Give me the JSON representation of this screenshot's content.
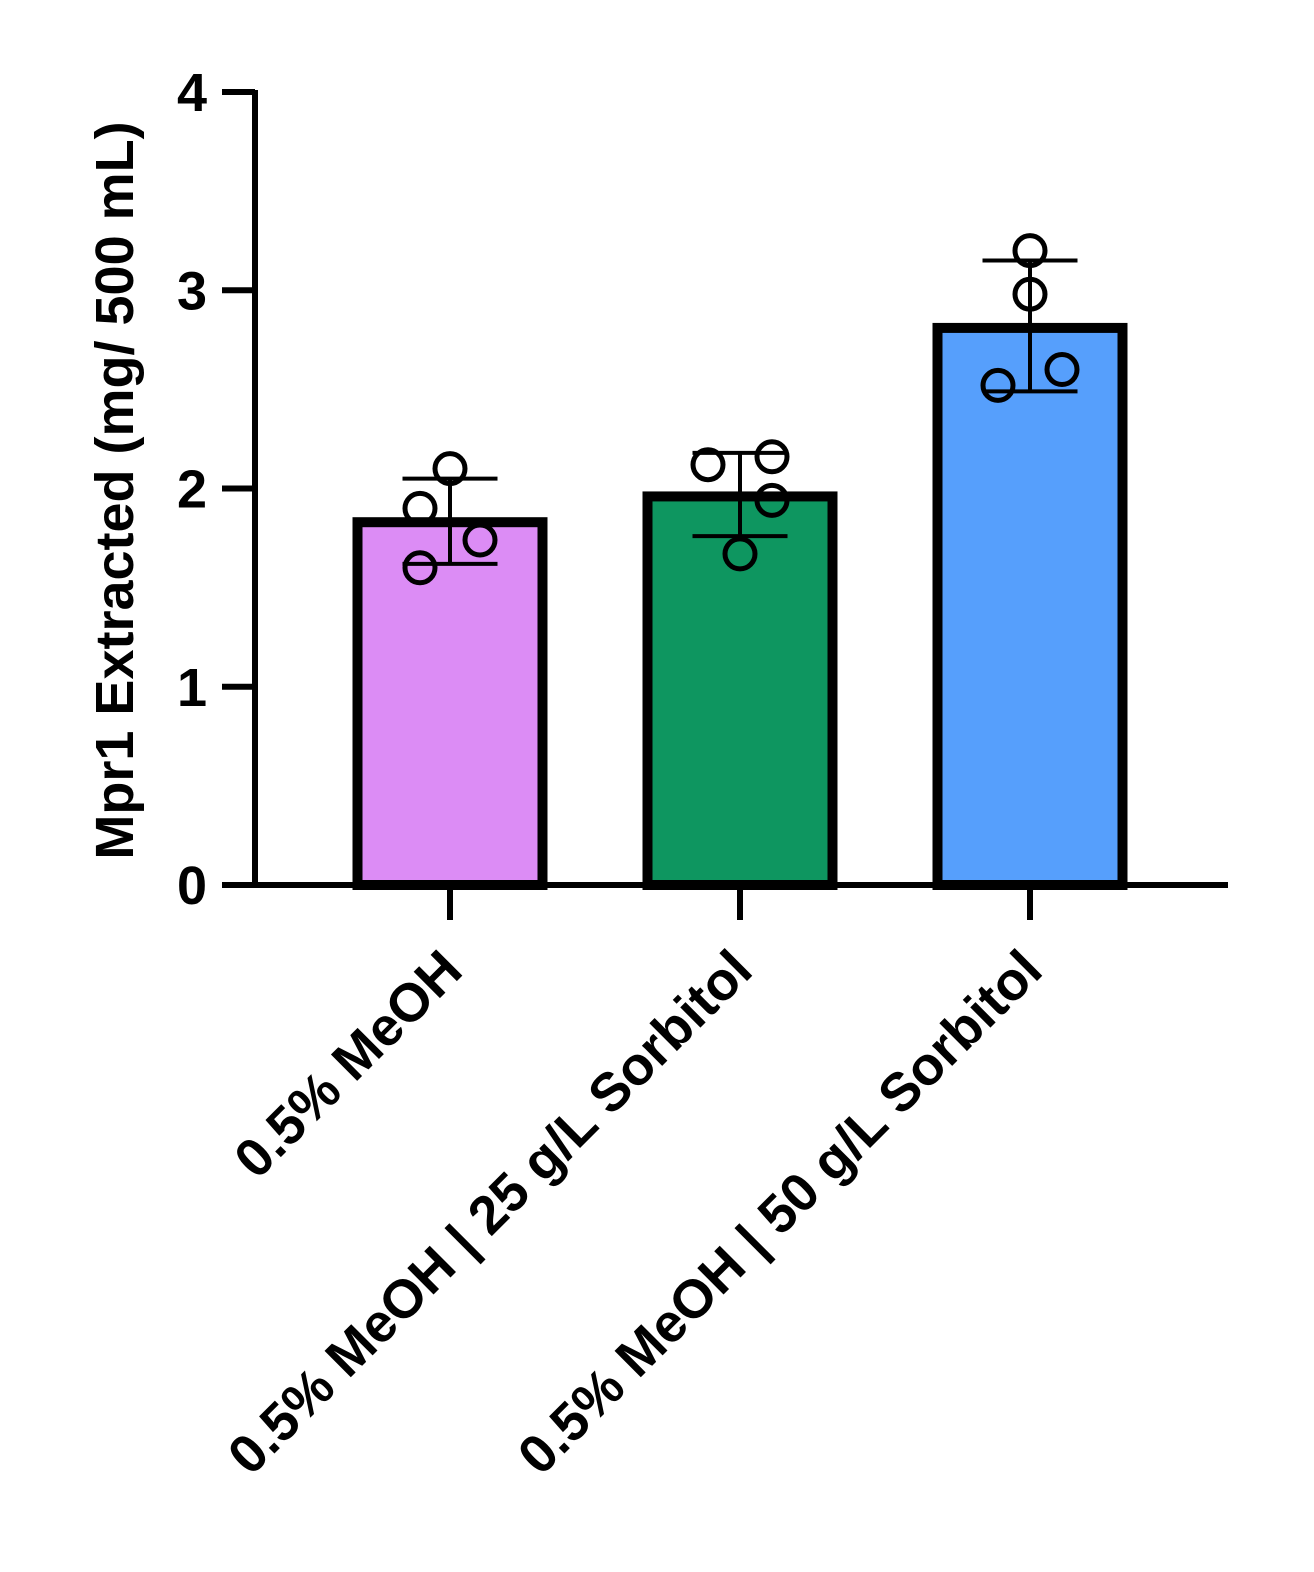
{
  "chart_data": {
    "type": "bar",
    "ylabel": "Mpr1 Extracted (mg/ 500 mL)",
    "ylim": [
      0,
      4
    ],
    "yticks": [
      0,
      1,
      2,
      3,
      4
    ],
    "grid": false,
    "categories": [
      "0.5% MeOH",
      "0.5% MeOH | 25 g/L Sorbitol",
      "0.5% MeOH | 50 g/L Sorbitol"
    ],
    "values": [
      1.83,
      1.96,
      2.81
    ],
    "error_low": [
      1.62,
      1.76,
      2.49
    ],
    "error_high": [
      2.05,
      2.18,
      3.15
    ],
    "points": [
      [
        2.1,
        1.9,
        1.74,
        1.6
      ],
      [
        2.12,
        2.16,
        1.94,
        1.67
      ],
      [
        3.2,
        2.98,
        2.6,
        2.52
      ]
    ],
    "colors": [
      "#dc8cf5",
      "#0e9660",
      "#569ffc"
    ]
  }
}
